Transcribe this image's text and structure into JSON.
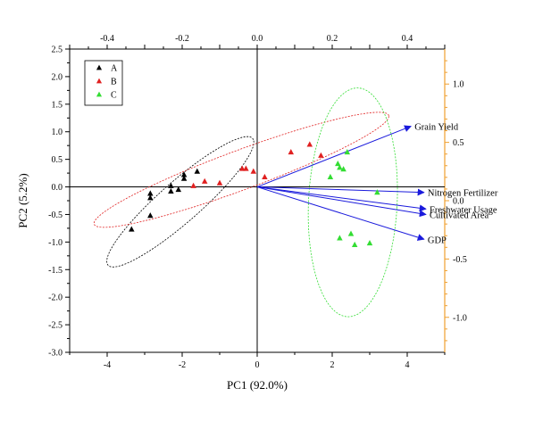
{
  "chart_data": {
    "type": "scatter",
    "subtype": "pca-biplot",
    "xlabel": "PC1 (92.0%)",
    "ylabel": "PC2 (5.2%)",
    "xlim": [
      -5,
      5
    ],
    "ylim": [
      -3,
      2.5
    ],
    "x_ticks": [
      "-4",
      "-2",
      "0",
      "2",
      "4"
    ],
    "y_ticks": [
      "-3.0",
      "-2.5",
      "-2.0",
      "-1.5",
      "-1.0",
      "-0.5",
      "0.0",
      "0.5",
      "1.0",
      "1.5",
      "2.0",
      "2.5"
    ],
    "top_axis": {
      "range": [
        -0.5,
        0.5
      ],
      "ticks": [
        "-0.4",
        "-0.2",
        "0.0",
        "0.2",
        "0.4"
      ]
    },
    "right_axis": {
      "range": [
        -1.3,
        1.3
      ],
      "ticks": [
        "-1.0",
        "-0.5",
        "0.0",
        "0.5",
        "1.0"
      ],
      "color": "#f0a030"
    },
    "grid": false,
    "legend": {
      "position": "top-left",
      "framed": true
    },
    "series": [
      {
        "name": "A",
        "color": "#000000",
        "points": [
          [
            -3.35,
            -0.77
          ],
          [
            -2.85,
            -0.52
          ],
          [
            -2.85,
            -0.2
          ],
          [
            -2.85,
            -0.12
          ],
          [
            -2.3,
            -0.08
          ],
          [
            -2.3,
            0.02
          ],
          [
            -2.1,
            -0.05
          ],
          [
            -1.95,
            0.22
          ],
          [
            -1.95,
            0.15
          ],
          [
            -1.6,
            0.28
          ]
        ],
        "ellipse": {
          "cx": -2.05,
          "cy": -0.27,
          "rx": 2.25,
          "ry": 0.42,
          "angle_deg": 30
        }
      },
      {
        "name": "B",
        "color": "#e02020",
        "points": [
          [
            -1.7,
            0.02
          ],
          [
            -1.4,
            0.1
          ],
          [
            -1.0,
            0.07
          ],
          [
            -0.4,
            0.33
          ],
          [
            -0.3,
            0.33
          ],
          [
            -0.1,
            0.28
          ],
          [
            0.2,
            0.18
          ],
          [
            0.9,
            0.63
          ],
          [
            1.4,
            0.77
          ],
          [
            1.7,
            0.57
          ]
        ],
        "ellipse": {
          "cx": -0.42,
          "cy": 0.31,
          "rx": 4.05,
          "ry": 0.37,
          "angle_deg": 14
        }
      },
      {
        "name": "C",
        "color": "#33dd33",
        "points": [
          [
            1.95,
            0.18
          ],
          [
            2.15,
            0.42
          ],
          [
            2.2,
            0.35
          ],
          [
            2.3,
            0.32
          ],
          [
            2.4,
            0.63
          ],
          [
            2.2,
            -0.93
          ],
          [
            2.5,
            -0.85
          ],
          [
            2.6,
            -1.05
          ],
          [
            3.0,
            -1.02
          ],
          [
            3.2,
            -0.1
          ]
        ],
        "ellipse": {
          "cx": 2.55,
          "cy": -0.28,
          "rx": 1.18,
          "ry": 2.08,
          "angle_deg": -5
        }
      }
    ],
    "loadings": [
      {
        "name": "Grain Yield",
        "x": 4.1,
        "y": 1.1
      },
      {
        "name": "Nitrogen Fertilizer",
        "x": 4.45,
        "y": -0.1
      },
      {
        "name": "Freshwater Usage",
        "x": 4.5,
        "y": -0.4
      },
      {
        "name": "Cultivated Area",
        "x": 4.5,
        "y": -0.5
      },
      {
        "name": "GDP",
        "x": 4.45,
        "y": -0.95
      }
    ],
    "arrow_color": "#1a1adc"
  }
}
